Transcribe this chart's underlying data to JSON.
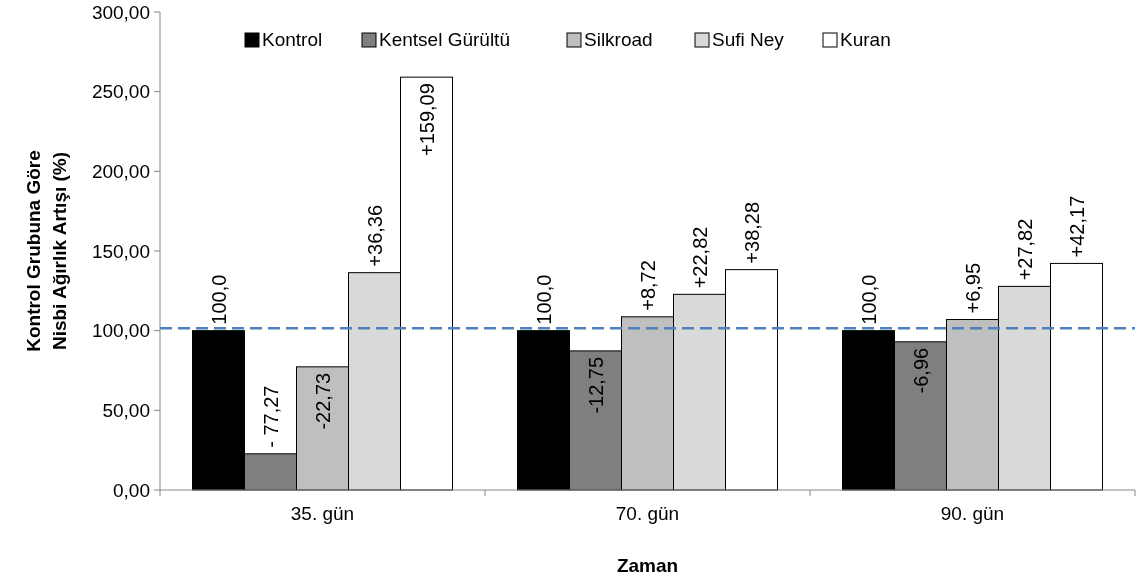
{
  "chart_data": {
    "type": "bar",
    "xlabel": "Zaman",
    "ylabel": "Kontrol Grubuna Göre\nNisbi Ağırlık Artışı (%)",
    "categories": [
      "35. gün",
      "70. gün",
      "90. gün"
    ],
    "series": [
      {
        "name": "Kontrol",
        "color": "#000000",
        "values": [
          100,
          100,
          100
        ]
      },
      {
        "name": "Kentsel Gürültü",
        "color": "#7f7f7f",
        "values": [
          22.7,
          87.3,
          93
        ]
      },
      {
        "name": "Silkroad",
        "color": "#bfbfbf",
        "values": [
          77.3,
          108.7,
          107
        ]
      },
      {
        "name": "Sufi Ney",
        "color": "#d9d9d9",
        "values": [
          136.4,
          122.8,
          127.8
        ]
      },
      {
        "name": "Kuran",
        "color": "#ffffff",
        "values": [
          259.1,
          138.3,
          142.2
        ]
      }
    ],
    "annotations": [
      "100,0",
      "100,0",
      "100,0",
      "- 77,27",
      "-12,75",
      "-6,96",
      "-22,73",
      "+8,72",
      "+6,95",
      "+36,36",
      "+22,82",
      "+27,82",
      "+159,09",
      "+38,28",
      "+42,17"
    ],
    "ylim": [
      0,
      300
    ],
    "yticks": [
      {
        "value": 0,
        "label": "0,00"
      },
      {
        "value": 50,
        "label": "50,00"
      },
      {
        "value": 100,
        "label": "100,00"
      },
      {
        "value": 150,
        "label": "150,00"
      },
      {
        "value": 200,
        "label": "200,00"
      },
      {
        "value": 250,
        "label": "250,00"
      },
      {
        "value": 300,
        "label": "300,00"
      }
    ],
    "ref_lines": [
      {
        "axis": "y",
        "value": 101.5,
        "color": "#4f81bd",
        "line_style": "dashed"
      }
    ],
    "grid": false,
    "legend": "top"
  }
}
